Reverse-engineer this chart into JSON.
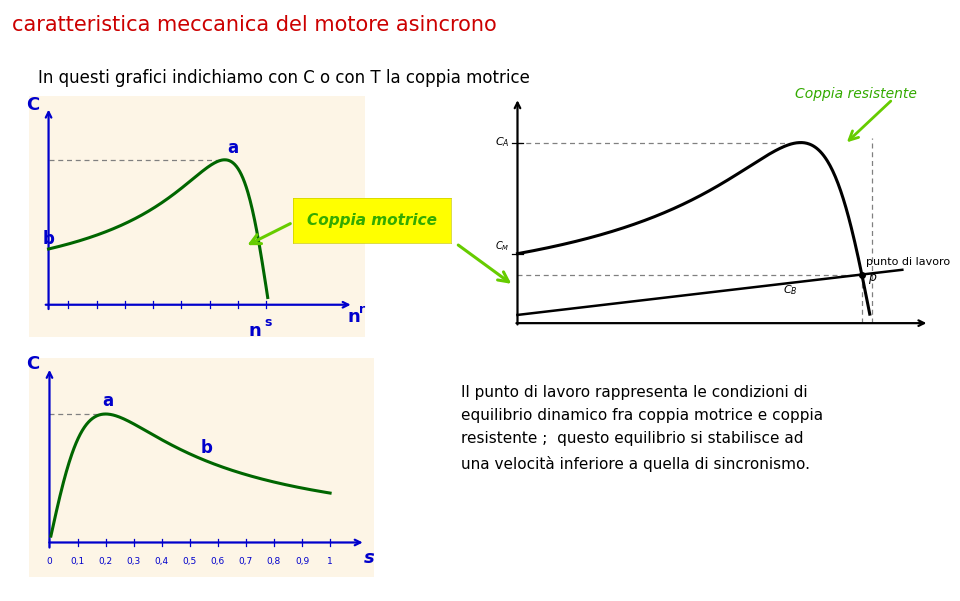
{
  "title": "caratteristica meccanica del motore asincrono",
  "title_color": "#cc0000",
  "subtitle": "In questi grafici indichiamo con C o con T la coppia motrice",
  "subtitle_color": "#000000",
  "bg_color": "#fdf5e6",
  "curve_color": "#006600",
  "axis_color": "#0000cc",
  "label_color": "#0000cc",
  "plot1_bg": "#fdf5e6",
  "plot2_bg": "#fdf5e6",
  "coppia_motrice_label": "Coppia motrice",
  "coppia_motrice_color": "#33aa00",
  "coppia_resistente_label": "Coppia resistente",
  "coppia_resistente_color": "#33aa00",
  "body_text": "Il punto di lavoro rappresenta le condizioni di\nequilibrio dinamico fra coppia motrice e coppia\nresistente ;  questo equilibrio si stabilisce ad\nuna velocità inferiore a quella di sincronismo.",
  "body_text_color": "#000000",
  "arrow_color": "#66cc00"
}
